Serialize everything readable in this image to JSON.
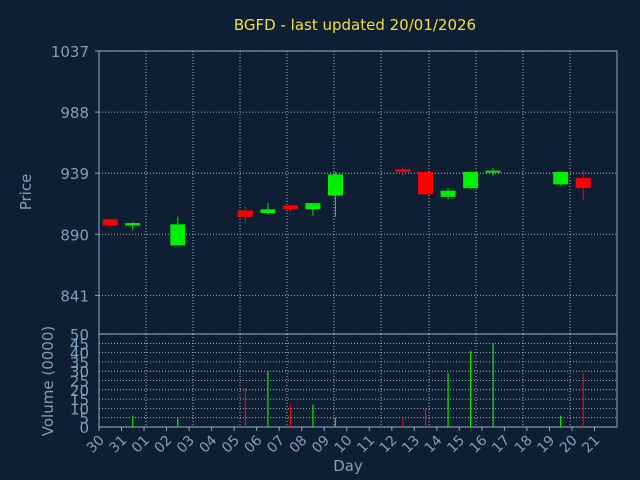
{
  "chart_data": [
    {
      "type": "candlestick",
      "title": "BGFD - last updated 20/01/2026",
      "ylabel": "Price",
      "xlabel": "Day",
      "ylim": [
        810,
        1037
      ],
      "yticks": [
        841,
        890,
        939,
        988,
        1037
      ],
      "x_ticks": [
        "30",
        "31",
        "01",
        "02",
        "03",
        "04",
        "05",
        "06",
        "07",
        "08",
        "09",
        "10",
        "11",
        "12",
        "13",
        "14",
        "15",
        "16",
        "17",
        "18",
        "19",
        "20",
        "21"
      ],
      "candles": [
        {
          "x": "30",
          "open": 902,
          "high": 902,
          "low": 896,
          "close": 897
        },
        {
          "x": "31",
          "open": 897,
          "high": 900,
          "low": 893,
          "close": 899
        },
        {
          "x": "02",
          "open": 881,
          "high": 904,
          "low": 881,
          "close": 898
        },
        {
          "x": "05",
          "open": 909,
          "high": 912,
          "low": 899,
          "close": 904
        },
        {
          "x": "06",
          "open": 907,
          "high": 915,
          "low": 906,
          "close": 910
        },
        {
          "x": "07",
          "open": 913,
          "high": 914,
          "low": 908,
          "close": 910
        },
        {
          "x": "08",
          "open": 910,
          "high": 915,
          "low": 905,
          "close": 915
        },
        {
          "x": "09",
          "open": 921,
          "high": 940,
          "low": 904,
          "close": 938
        },
        {
          "x": "12",
          "open": 942,
          "high": 944,
          "low": 937,
          "close": 940
        },
        {
          "x": "13",
          "open": 940,
          "high": 940,
          "low": 922,
          "close": 922
        },
        {
          "x": "14",
          "open": 920,
          "high": 927,
          "low": 918,
          "close": 925
        },
        {
          "x": "15",
          "open": 927,
          "high": 940,
          "low": 926,
          "close": 940
        },
        {
          "x": "16",
          "open": 940,
          "high": 943,
          "low": 937,
          "close": 941
        },
        {
          "x": "19",
          "open": 930,
          "high": 940,
          "low": 929,
          "close": 940
        },
        {
          "x": "20",
          "open": 935,
          "high": 941,
          "low": 917,
          "close": 927
        }
      ],
      "up_color": "#00ee00",
      "down_color": "#ff0000",
      "grid": true
    },
    {
      "type": "bar",
      "ylabel": "Volume (0000)",
      "xlabel": "Day",
      "ylim": [
        0,
        50
      ],
      "yticks": [
        0,
        5,
        10,
        15,
        20,
        25,
        30,
        35,
        40,
        45,
        50
      ],
      "x_ticks": [
        "30",
        "31",
        "01",
        "02",
        "03",
        "04",
        "05",
        "06",
        "07",
        "08",
        "09",
        "10",
        "11",
        "12",
        "13",
        "14",
        "15",
        "16",
        "17",
        "18",
        "19",
        "20",
        "21"
      ],
      "bars": [
        {
          "x": "30",
          "value": 0,
          "color": "#ff0000"
        },
        {
          "x": "31",
          "value": 6,
          "color": "#00ee00"
        },
        {
          "x": "02",
          "value": 5,
          "color": "#00ee00"
        },
        {
          "x": "05",
          "value": 21,
          "color": "#ff0000"
        },
        {
          "x": "06",
          "value": 30,
          "color": "#00ee00"
        },
        {
          "x": "07",
          "value": 12,
          "color": "#ff0000"
        },
        {
          "x": "08",
          "value": 12,
          "color": "#00ee00"
        },
        {
          "x": "09",
          "value": 5,
          "color": "#00ee00"
        },
        {
          "x": "12",
          "value": 5,
          "color": "#ff0000"
        },
        {
          "x": "13",
          "value": 10,
          "color": "#ff0000"
        },
        {
          "x": "14",
          "value": 29,
          "color": "#00ee00"
        },
        {
          "x": "15",
          "value": 41,
          "color": "#00ee00"
        },
        {
          "x": "16",
          "value": 45,
          "color": "#00ee00"
        },
        {
          "x": "19",
          "value": 6,
          "color": "#00ee00"
        },
        {
          "x": "20",
          "value": 29,
          "color": "#ff0000"
        }
      ],
      "grid": true
    }
  ],
  "colors": {
    "background": "#0f1f33",
    "axis": "#8aa8c8",
    "label": "#7f9fbf",
    "title": "#f0e040"
  }
}
